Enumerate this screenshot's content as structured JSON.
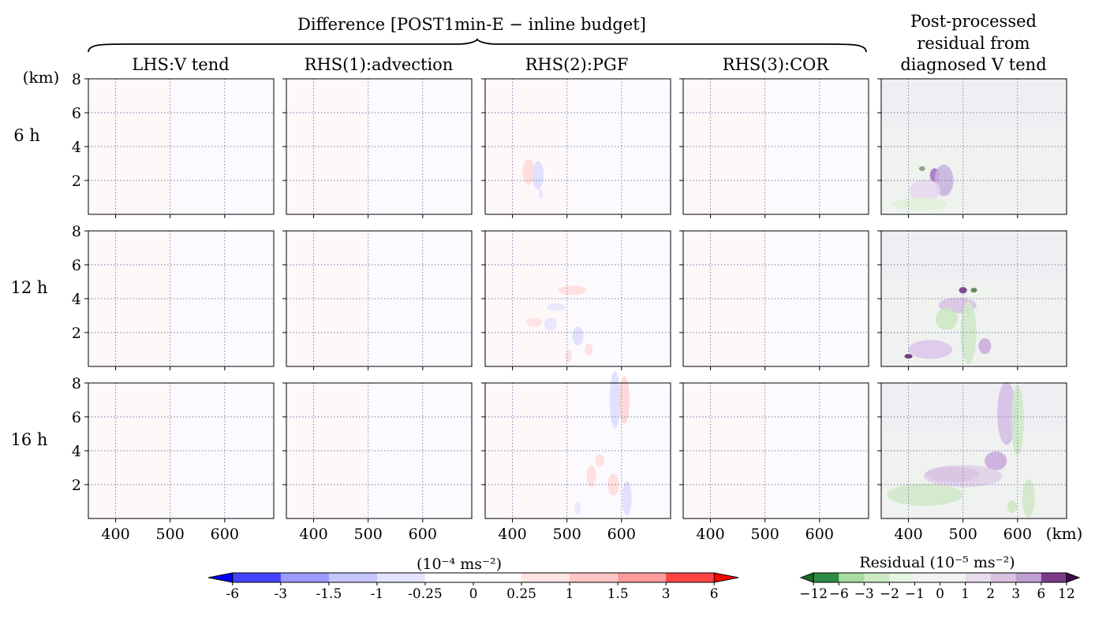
{
  "figure": {
    "group_title": "Difference [POST1min-E − inline budget]",
    "post_title_lines": [
      "Post-processed",
      "residual from",
      "diagnosed V tend"
    ],
    "y_unit": "(km)",
    "x_unit": "(km)"
  },
  "chart_data": {
    "type": "heatmap",
    "panels": {
      "columns": [
        "LHS:V tend",
        "RHS(1):advection",
        "RHS(2):PGF",
        "RHS(3):COR"
      ],
      "rows": [
        "6 h",
        "12 h",
        "16 h"
      ]
    },
    "x_ticks": [
      400,
      500,
      600
    ],
    "xlim": [
      350,
      690
    ],
    "y_ticks": [
      2,
      4,
      6,
      8
    ],
    "ylim": [
      0,
      8
    ],
    "grid": true,
    "diff_colorbar": {
      "label": "(10⁻⁴ ms⁻²)",
      "levels": [
        "-6",
        "-3",
        "-1.5",
        "-1",
        "-0.25",
        "0",
        "0.25",
        "1",
        "1.5",
        "3",
        "6"
      ],
      "colors": [
        "#0000ff",
        "#4444ff",
        "#9a9aff",
        "#c6c6ff",
        "#e4e4ff",
        "#ffffff",
        "#ffffff",
        "#ffe4e4",
        "#ffc6c6",
        "#ff9a9a",
        "#ff4444",
        "#ff0000"
      ]
    },
    "residual_colorbar": {
      "label": "Residual (10⁻⁵ ms⁻²)",
      "levels": [
        "−12",
        "−6",
        "−3",
        "−2",
        "−1",
        "0",
        "1",
        "2",
        "3",
        "6",
        "12"
      ],
      "colors": [
        "#1a6b2a",
        "#2e8b45",
        "#a8dca0",
        "#ccebc5",
        "#e6f4e2",
        "#f2f2f2",
        "#f2f2f2",
        "#e8dcec",
        "#d8c2e0",
        "#c0a0d2",
        "#7d3a8c",
        "#3f0b4f"
      ]
    }
  }
}
